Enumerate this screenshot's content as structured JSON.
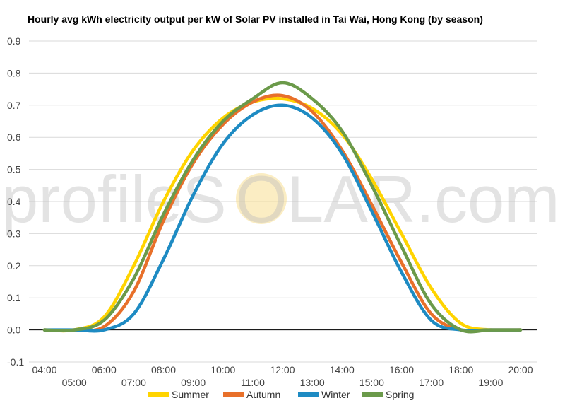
{
  "watermark": {
    "left": "profileS",
    "middle": "O",
    "right": "LAR.com",
    "sun_color": "#f7df92"
  },
  "chart_data": {
    "type": "line",
    "title": "Hourly avg kWh electricity output per kW of Solar PV installed in Tai Wai, Hong Kong (by season)",
    "xlabel": "",
    "ylabel": "",
    "x": [
      "04:00",
      "05:00",
      "06:00",
      "07:00",
      "08:00",
      "09:00",
      "10:00",
      "11:00",
      "12:00",
      "13:00",
      "14:00",
      "15:00",
      "16:00",
      "17:00",
      "18:00",
      "19:00",
      "20:00"
    ],
    "ylim": [
      -0.1,
      0.9
    ],
    "yticks": [
      "-0.1",
      "0.0",
      "0.1",
      "0.2",
      "0.3",
      "0.4",
      "0.5",
      "0.6",
      "0.7",
      "0.8",
      "0.9"
    ],
    "grid": true,
    "legend": "bottom",
    "series": [
      {
        "name": "Summer",
        "color": "#ffd400",
        "values": [
          0.0,
          0.0,
          0.04,
          0.2,
          0.4,
          0.56,
          0.66,
          0.71,
          0.72,
          0.69,
          0.61,
          0.47,
          0.3,
          0.13,
          0.02,
          0.0,
          0.0
        ]
      },
      {
        "name": "Autumn",
        "color": "#e8702a",
        "values": [
          0.0,
          0.0,
          0.01,
          0.12,
          0.34,
          0.52,
          0.64,
          0.71,
          0.73,
          0.68,
          0.56,
          0.39,
          0.21,
          0.05,
          0.0,
          0.0,
          0.0
        ]
      },
      {
        "name": "Winter",
        "color": "#1e8bc3",
        "values": [
          0.0,
          0.0,
          0.0,
          0.05,
          0.22,
          0.42,
          0.58,
          0.67,
          0.7,
          0.66,
          0.55,
          0.37,
          0.18,
          0.03,
          0.0,
          0.0,
          0.0
        ]
      },
      {
        "name": "Spring",
        "color": "#6b9a4a",
        "values": [
          0.0,
          0.0,
          0.03,
          0.16,
          0.36,
          0.53,
          0.65,
          0.72,
          0.77,
          0.72,
          0.62,
          0.45,
          0.26,
          0.08,
          0.0,
          0.0,
          0.0
        ]
      }
    ]
  }
}
